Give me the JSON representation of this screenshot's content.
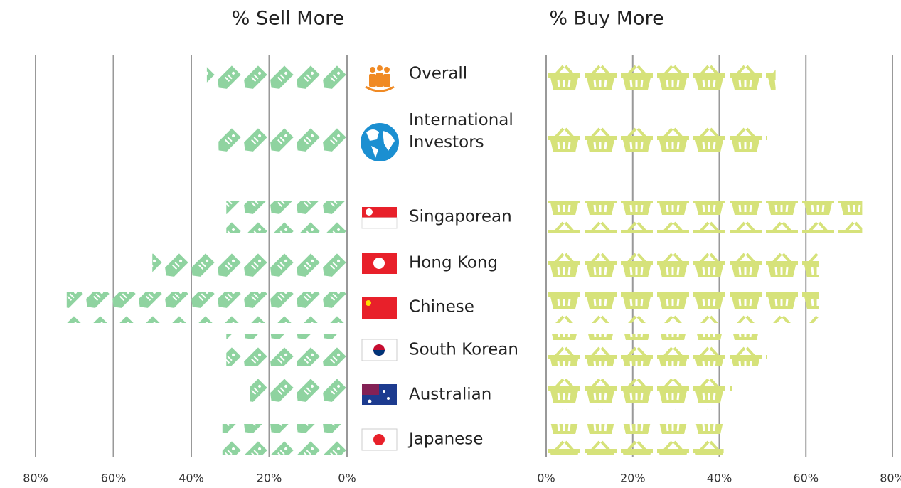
{
  "chart_data": {
    "type": "pictogram-butterfly",
    "categories": [
      "Overall",
      "International Investors",
      "Singaporean",
      "Hong Kong",
      "Chinese",
      "South Korean",
      "Australian",
      "Japanese"
    ],
    "series": [
      {
        "name": "% Sell More",
        "color": "#8fd3a0",
        "values": [
          36,
          33,
          31,
          50,
          72,
          31,
          25,
          32
        ],
        "xlim": [
          0,
          80
        ],
        "xticks": [
          {
            "value": 0,
            "label": "0%"
          },
          {
            "value": 20,
            "label": "20%"
          },
          {
            "value": 40,
            "label": "40%"
          },
          {
            "value": 60,
            "label": "60%"
          },
          {
            "value": 80,
            "label": "80%"
          }
        ]
      },
      {
        "name": "% Buy More",
        "color": "#d6e27a",
        "values": [
          53,
          51,
          73,
          63,
          63,
          51,
          43,
          41
        ],
        "xlim": [
          0,
          80
        ],
        "xticks": [
          {
            "value": 0,
            "label": "0%"
          },
          {
            "value": 20,
            "label": "20%"
          },
          {
            "value": 40,
            "label": "40%"
          },
          {
            "value": 60,
            "label": "60%"
          },
          {
            "value": 80,
            "label": "80%"
          }
        ]
      }
    ],
    "grid": true
  }
}
